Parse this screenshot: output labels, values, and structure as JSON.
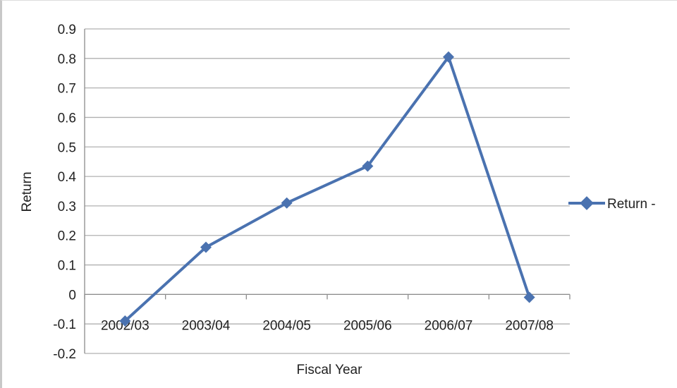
{
  "chart_data": {
    "type": "line",
    "title": "",
    "xlabel": "Fiscal Year",
    "ylabel": "Return",
    "categories": [
      "2002/03",
      "2003/04",
      "2004/05",
      "2005/06",
      "2006/07",
      "2007/08"
    ],
    "series": [
      {
        "name": "Return -",
        "values": [
          -0.09,
          0.16,
          0.31,
          0.435,
          0.805,
          -0.01
        ],
        "color": "#4a72b0",
        "marker": "diamond"
      }
    ],
    "ylim": [
      -0.2,
      0.9
    ],
    "yticks": [
      -0.2,
      -0.1,
      0,
      0.1,
      0.2,
      0.3,
      0.4,
      0.5,
      0.6,
      0.7,
      0.8,
      0.9
    ],
    "ytick_labels": [
      "-0.2",
      "-0.1",
      "0",
      "0.1",
      "0.2",
      "0.3",
      "0.4",
      "0.5",
      "0.6",
      "0.7",
      "0.8",
      "0.9"
    ],
    "grid": true,
    "gridline_color": "#b0b0b0",
    "legend_position": "right"
  }
}
